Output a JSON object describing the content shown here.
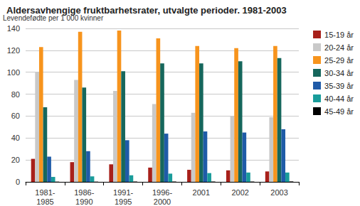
{
  "chart_data": {
    "type": "bar",
    "title": "Aldersavhengige fruktbarhetsrater, utvalgte perioder. 1981-2003",
    "y_label": "Levendefødte per 1 000 kvinner",
    "categories": [
      "1981-\n1985",
      "1986-\n1990",
      "1991-\n1995",
      "1996-\n2000",
      "2001",
      "2002",
      "2003"
    ],
    "series": [
      {
        "name": "15-19 år",
        "color": "#a8201a",
        "values": [
          21,
          18,
          16,
          13,
          11,
          10.5,
          9.5
        ]
      },
      {
        "name": "20-24 år",
        "color": "#c9c9c9",
        "values": [
          100,
          93,
          83,
          71,
          63,
          60,
          59
        ]
      },
      {
        "name": "25-29 år",
        "color": "#f7941d",
        "values": [
          123,
          137,
          138,
          131,
          124,
          122,
          124
        ]
      },
      {
        "name": "30-34 år",
        "color": "#16675c",
        "values": [
          68,
          86,
          101,
          108,
          108,
          110,
          113
        ]
      },
      {
        "name": "35-39 år",
        "color": "#1f5ba8",
        "values": [
          23,
          28,
          38,
          44,
          46,
          45,
          48
        ]
      },
      {
        "name": "40-44 år",
        "color": "#199c9a",
        "values": [
          4.5,
          5,
          6,
          7.5,
          8,
          8.5,
          8.5
        ]
      },
      {
        "name": "45-49 år",
        "color": "#000000",
        "values": [
          0.2,
          0.2,
          0.3,
          0.3,
          0.3,
          0.3,
          0.4
        ]
      }
    ],
    "ylim": [
      0,
      140
    ],
    "yticks": [
      0,
      20,
      40,
      60,
      80,
      100,
      120,
      140
    ],
    "grid": true,
    "legend": "right"
  }
}
